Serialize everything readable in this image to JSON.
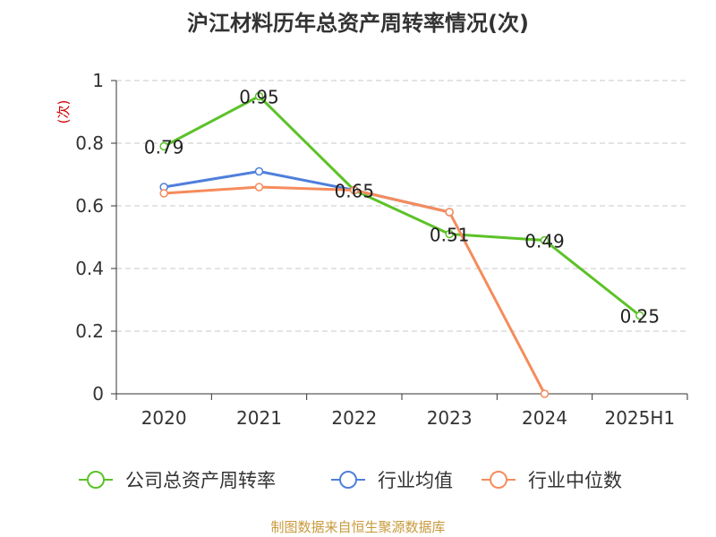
{
  "chart_data": {
    "type": "line",
    "title": "沪江材料历年总资产周转率情况(次)",
    "ylabel": "(次)",
    "xlabel": "",
    "categories": [
      "2020",
      "2021",
      "2022",
      "2023",
      "2024",
      "2025H1"
    ],
    "ylim": [
      0,
      1
    ],
    "yticks": [
      "0",
      "0.2",
      "0.4",
      "0.6",
      "0.8",
      "1"
    ],
    "grid": true,
    "legend_position": "bottom",
    "series": [
      {
        "name": "公司总资产周转率",
        "color": "#5cc228",
        "values": [
          0.79,
          0.95,
          0.65,
          0.51,
          0.49,
          0.25
        ],
        "labels": [
          "0.79",
          "0.95",
          "0.65",
          "0.51",
          "0.49",
          "0.25"
        ],
        "show_labels": true
      },
      {
        "name": "行业均值",
        "color": "#4f7fdb",
        "values": [
          0.66,
          0.71,
          0.65,
          0.58,
          null,
          null
        ],
        "show_labels": false
      },
      {
        "name": "行业中位数",
        "color": "#f58c5c",
        "values": [
          0.64,
          0.66,
          0.65,
          0.58,
          0.0,
          null
        ],
        "show_labels": false
      }
    ]
  },
  "source_text": "制图数据来自恒生聚源数据库"
}
